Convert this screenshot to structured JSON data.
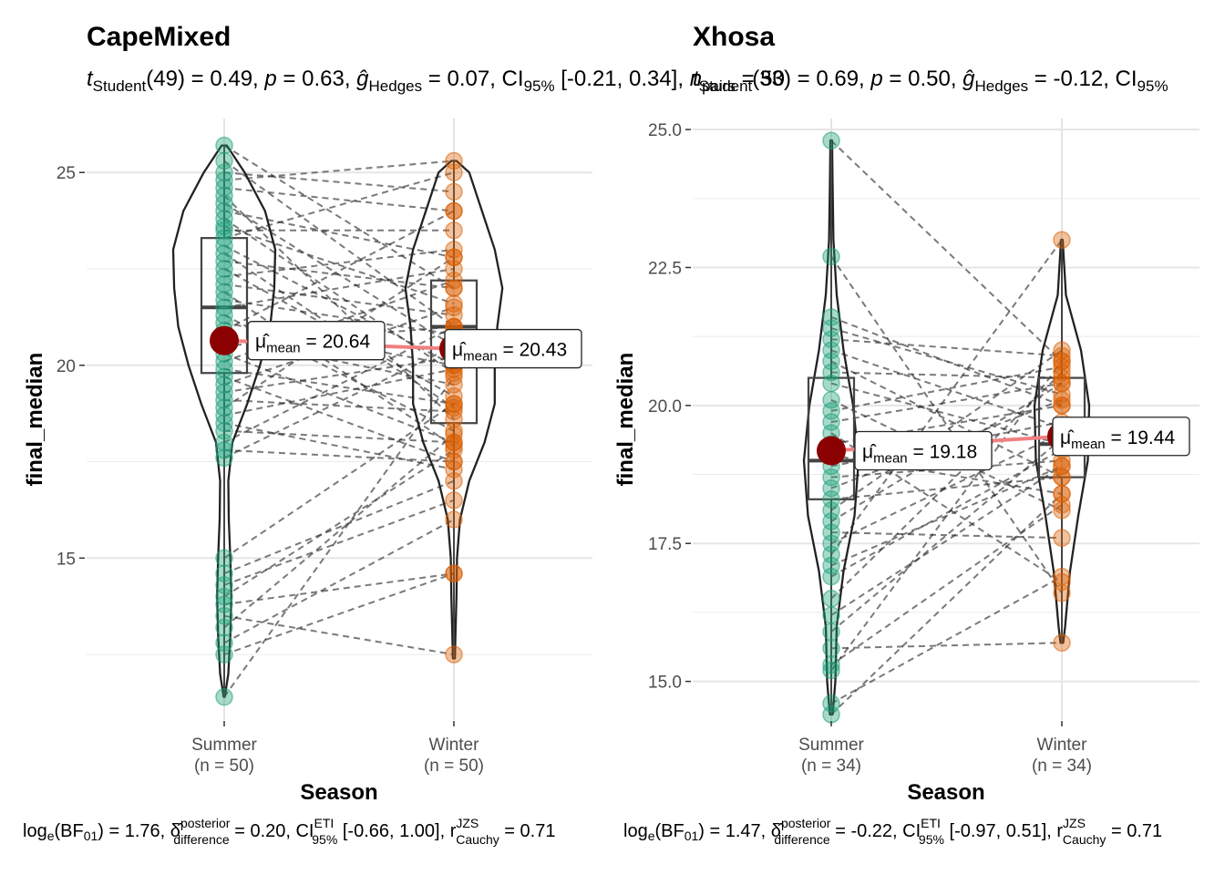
{
  "chart_data": [
    {
      "type": "violin-box-paired",
      "title": "CapeMixed",
      "subtitle": {
        "stat": "Student",
        "df": "49",
        "t": "0.49",
        "p": "0.63",
        "g_hedges": "0.07",
        "ci": "[-0.21, 0.34]",
        "n_pairs": "50"
      },
      "xlabel": "Season",
      "ylabel": "final_median",
      "ylim": [
        10.8,
        26.4
      ],
      "yticks": [
        15,
        20,
        25
      ],
      "categories": [
        "Summer",
        "Winter"
      ],
      "category_n": [
        "(n = 50)",
        "(n = 50)"
      ],
      "group_colors": [
        "#1b9e77",
        "#d95f02"
      ],
      "means": [
        20.64,
        20.43
      ],
      "mean_labels": [
        "= 20.64",
        "= 20.43"
      ],
      "boxes": [
        {
          "q1": 19.8,
          "median": 21.5,
          "q3": 23.3,
          "lo": 11.4,
          "hi": 25.7
        },
        {
          "q1": 18.5,
          "median": 21.0,
          "q3": 22.2,
          "lo": 12.4,
          "hi": 25.3
        }
      ],
      "violin_profile": [
        [
          [
            11.4,
            0.01
          ],
          [
            12,
            0.08
          ],
          [
            13,
            0.12
          ],
          [
            14,
            0.14
          ],
          [
            15,
            0.12
          ],
          [
            16,
            0.09
          ],
          [
            17,
            0.08
          ],
          [
            18,
            0.16
          ],
          [
            19,
            0.45
          ],
          [
            20,
            0.7
          ],
          [
            21,
            0.9
          ],
          [
            22,
            0.98
          ],
          [
            23,
            1.0
          ],
          [
            24,
            0.8
          ],
          [
            25,
            0.4
          ],
          [
            25.7,
            0.05
          ]
        ],
        [
          [
            12.4,
            0.02
          ],
          [
            13,
            0.03
          ],
          [
            14,
            0.05
          ],
          [
            15,
            0.06
          ],
          [
            16,
            0.12
          ],
          [
            17,
            0.3
          ],
          [
            18,
            0.6
          ],
          [
            19,
            0.8
          ],
          [
            20,
            0.8
          ],
          [
            21,
            0.85
          ],
          [
            22,
            0.95
          ],
          [
            23,
            0.8
          ],
          [
            24,
            0.55
          ],
          [
            25,
            0.3
          ],
          [
            25.3,
            0.05
          ]
        ]
      ],
      "pairs": [
        [
          25.7,
          22.0
        ],
        [
          25.3,
          21.0
        ],
        [
          25.0,
          24.5
        ],
        [
          24.8,
          25.3
        ],
        [
          24.6,
          24.0
        ],
        [
          24.4,
          18.6
        ],
        [
          24.2,
          20.5
        ],
        [
          24.0,
          22.8
        ],
        [
          23.8,
          19.8
        ],
        [
          23.6,
          21.6
        ],
        [
          23.5,
          23.5
        ],
        [
          23.3,
          25.0
        ],
        [
          23.1,
          20.0
        ],
        [
          22.9,
          18.9
        ],
        [
          22.7,
          22.0
        ],
        [
          22.5,
          19.2
        ],
        [
          22.3,
          23.0
        ],
        [
          22.1,
          21.3
        ],
        [
          21.9,
          17.9
        ],
        [
          21.7,
          20.8
        ],
        [
          21.5,
          22.5
        ],
        [
          21.3,
          18.3
        ],
        [
          21.1,
          20.0
        ],
        [
          20.9,
          24.0
        ],
        [
          20.7,
          19.5
        ],
        [
          20.5,
          21.0
        ],
        [
          20.3,
          18.0
        ],
        [
          20.1,
          22.2
        ],
        [
          19.9,
          19.0
        ],
        [
          19.7,
          17.5
        ],
        [
          19.5,
          21.5
        ],
        [
          19.3,
          20.2
        ],
        [
          19.1,
          18.8
        ],
        [
          18.9,
          22.8
        ],
        [
          18.7,
          19.9
        ],
        [
          18.5,
          17.3
        ],
        [
          18.3,
          18.0
        ],
        [
          18.0,
          21.0
        ],
        [
          17.8,
          17.5
        ],
        [
          17.6,
          20.5
        ],
        [
          15.0,
          19.0
        ],
        [
          14.6,
          17.0
        ],
        [
          14.3,
          16.5
        ],
        [
          14.0,
          17.8
        ],
        [
          13.8,
          14.6
        ],
        [
          13.5,
          12.5
        ],
        [
          13.2,
          18.2
        ],
        [
          12.8,
          16.0
        ],
        [
          12.5,
          14.6
        ],
        [
          11.4,
          19.7
        ]
      ]
    },
    {
      "type": "violin-box-paired",
      "title": "Xhosa",
      "subtitle": {
        "stat": "Student",
        "df": "33",
        "t": "0.69",
        "p": "0.50",
        "g_hedges": "-0.12",
        "ci": "",
        "n_pairs": ""
      },
      "xlabel": "Season",
      "ylabel": "final_median",
      "ylim": [
        14.3,
        25.2
      ],
      "yticks": [
        15.0,
        17.5,
        20.0,
        22.5,
        25.0
      ],
      "categories": [
        "Summer",
        "Winter"
      ],
      "category_n": [
        "(n = 34)",
        "(n = 34)"
      ],
      "group_colors": [
        "#1b9e77",
        "#d95f02"
      ],
      "means": [
        19.18,
        19.44
      ],
      "mean_labels": [
        "= 19.18",
        "= 19.44"
      ],
      "boxes": [
        {
          "q1": 18.3,
          "median": 19.0,
          "q3": 20.5,
          "lo": 14.4,
          "hi": 24.8
        },
        {
          "q1": 18.7,
          "median": 19.3,
          "q3": 20.5,
          "lo": 15.7,
          "hi": 23.0
        }
      ],
      "violin_profile": [
        [
          [
            14.4,
            0.05
          ],
          [
            15,
            0.15
          ],
          [
            16,
            0.2
          ],
          [
            17,
            0.45
          ],
          [
            18,
            0.85
          ],
          [
            19,
            1.0
          ],
          [
            20,
            0.8
          ],
          [
            21,
            0.45
          ],
          [
            22,
            0.2
          ],
          [
            23,
            0.08
          ],
          [
            24,
            0.05
          ],
          [
            24.8,
            0.03
          ]
        ],
        [
          [
            15.7,
            0.05
          ],
          [
            16,
            0.12
          ],
          [
            17,
            0.3
          ],
          [
            18,
            0.6
          ],
          [
            19,
            0.95
          ],
          [
            20,
            1.0
          ],
          [
            21,
            0.7
          ],
          [
            22,
            0.15
          ],
          [
            23,
            0.03
          ]
        ]
      ],
      "pairs": [
        [
          24.8,
          20.8
        ],
        [
          22.7,
          16.6
        ],
        [
          21.6,
          20.0
        ],
        [
          21.4,
          20.2
        ],
        [
          21.2,
          20.9
        ],
        [
          21.0,
          19.6
        ],
        [
          20.8,
          18.7
        ],
        [
          20.6,
          20.5
        ],
        [
          20.4,
          19.3
        ],
        [
          20.1,
          18.1
        ],
        [
          19.9,
          20.7
        ],
        [
          19.7,
          20.4
        ],
        [
          19.5,
          16.8
        ],
        [
          19.3,
          20.0
        ],
        [
          19.1,
          18.4
        ],
        [
          18.9,
          19.7
        ],
        [
          18.7,
          19.0
        ],
        [
          18.5,
          20.1
        ],
        [
          18.3,
          18.7
        ],
        [
          18.1,
          21.0
        ],
        [
          17.9,
          20.4
        ],
        [
          17.7,
          17.6
        ],
        [
          17.5,
          19.5
        ],
        [
          17.3,
          23.0
        ],
        [
          17.1,
          18.9
        ],
        [
          16.9,
          19.2
        ],
        [
          16.5,
          20.6
        ],
        [
          16.2,
          18.9
        ],
        [
          15.9,
          19.4
        ],
        [
          15.6,
          15.7
        ],
        [
          15.3,
          18.2
        ],
        [
          15.2,
          20.8
        ],
        [
          14.6,
          16.9
        ],
        [
          14.4,
          18.4
        ]
      ]
    }
  ],
  "captions": [
    {
      "logbf": "= 1.76,",
      "delta": "= 0.20, CI",
      "ci": "[-0.66, 1.00], r",
      "r": "= 0.71"
    },
    {
      "logbf": "= 1.47,",
      "delta": "= -0.22, CI",
      "ci": "[-0.97, 0.51], r",
      "r": "= 0.71"
    }
  ]
}
